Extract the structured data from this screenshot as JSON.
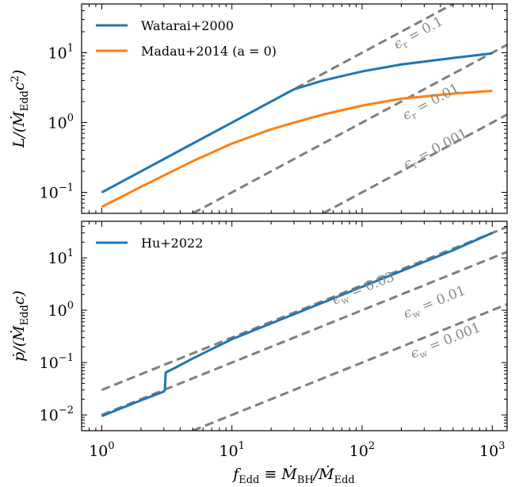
{
  "figure": {
    "xlabel": "f_Edd ≡ Ṁ_BH/Ṁ_Edd"
  },
  "chart_data": [
    {
      "type": "line",
      "panel": "top",
      "xscale": "log",
      "yscale": "log",
      "xlim": [
        0.7,
        1300
      ],
      "ylim": [
        0.05,
        50
      ],
      "ylabel": "L/(Ṁ_Edd c²)",
      "legend_position": "top-left",
      "x_ticks": [
        {
          "value": 1,
          "base": "10",
          "exp": "0"
        },
        {
          "value": 10,
          "base": "10",
          "exp": "1"
        },
        {
          "value": 100,
          "base": "10",
          "exp": "2"
        },
        {
          "value": 1000,
          "base": "10",
          "exp": "3"
        }
      ],
      "y_ticks": [
        {
          "value": 0.1,
          "base": "10",
          "exp": "−1"
        },
        {
          "value": 1,
          "base": "10",
          "exp": "0"
        },
        {
          "value": 10,
          "base": "10",
          "exp": "1"
        }
      ],
      "series": [
        {
          "name": "Watarai+2000",
          "color": "#1f77b4",
          "x": [
            1,
            2,
            5,
            10,
            20,
            25,
            30,
            50,
            100,
            200,
            500,
            1000
          ],
          "y": [
            0.1,
            0.2,
            0.5,
            1.0,
            2.0,
            2.5,
            3.0,
            4.0,
            5.4,
            6.8,
            8.4,
            9.8
          ]
        },
        {
          "name": "Madau+2014 (a = 0)",
          "color": "#ff7f0e",
          "x": [
            1,
            2,
            5,
            10,
            20,
            30,
            50,
            100,
            200,
            500,
            1000
          ],
          "y": [
            0.062,
            0.12,
            0.28,
            0.5,
            0.8,
            1.0,
            1.3,
            1.75,
            2.2,
            2.6,
            2.85
          ]
        }
      ],
      "reference_lines": [
        {
          "label": "ε_r = 0.1",
          "color": "#7f7f7f",
          "dash": "dashed",
          "x": [
            25,
            1300
          ],
          "y": [
            2.5,
            130
          ]
        },
        {
          "label": "ε_r = 0.01",
          "color": "#7f7f7f",
          "dash": "dashed",
          "x": [
            5,
            1300
          ],
          "y": [
            0.05,
            13
          ]
        },
        {
          "label": "ε_r = 0.001",
          "color": "#7f7f7f",
          "dash": "dashed",
          "x": [
            50,
            1300
          ],
          "y": [
            0.05,
            1.3
          ]
        }
      ],
      "annotations": [
        {
          "greek": "ϵ",
          "sub": "r",
          "rest": " = 0.1",
          "x": 280,
          "y": 17
        },
        {
          "greek": "ϵ",
          "sub": "r",
          "rest": " = 0.01",
          "x": 350,
          "y": 1.75
        },
        {
          "greek": "ϵ",
          "sub": "r",
          "rest": " = 0.001",
          "x": 380,
          "y": 0.37
        }
      ]
    },
    {
      "type": "line",
      "panel": "bottom",
      "xscale": "log",
      "yscale": "log",
      "xlim": [
        0.7,
        1300
      ],
      "ylim": [
        0.005,
        50
      ],
      "ylabel": "ṗ/(Ṁ_Edd c)",
      "legend_position": "top-left",
      "x_ticks": [
        {
          "value": 1,
          "base": "10",
          "exp": "0"
        },
        {
          "value": 10,
          "base": "10",
          "exp": "1"
        },
        {
          "value": 100,
          "base": "10",
          "exp": "2"
        },
        {
          "value": 1000,
          "base": "10",
          "exp": "3"
        }
      ],
      "y_ticks": [
        {
          "value": 0.01,
          "base": "10",
          "exp": "−2"
        },
        {
          "value": 0.1,
          "base": "10",
          "exp": "−1"
        },
        {
          "value": 1,
          "base": "10",
          "exp": "0"
        },
        {
          "value": 10,
          "base": "10",
          "exp": "1"
        }
      ],
      "series": [
        {
          "name": "Hu+2022",
          "color": "#1f77b4",
          "x": [
            1,
            2,
            3,
            3.05,
            3.1,
            3.5,
            5,
            10,
            20,
            50,
            100,
            200,
            500,
            1000
          ],
          "y": [
            0.0095,
            0.019,
            0.028,
            0.03,
            0.065,
            0.075,
            0.12,
            0.28,
            0.56,
            1.4,
            2.8,
            5.6,
            14,
            30
          ]
        }
      ],
      "reference_lines": [
        {
          "label": "ε_w = 0.03",
          "color": "#7f7f7f",
          "dash": "dashed",
          "x": [
            1,
            1300
          ],
          "y": [
            0.03,
            39
          ]
        },
        {
          "label": "ε_w = 0.01",
          "color": "#7f7f7f",
          "dash": "dashed",
          "x": [
            1,
            1300
          ],
          "y": [
            0.01,
            13
          ]
        },
        {
          "label": "ε_w = 0.001",
          "color": "#7f7f7f",
          "dash": "dashed",
          "x": [
            5,
            1300
          ],
          "y": [
            0.005,
            1.3
          ]
        }
      ],
      "annotations": [
        {
          "greek": "ϵ",
          "sub": "w",
          "rest": " = 0.03",
          "x": 105,
          "y": 2.2
        },
        {
          "greek": "ϵ",
          "sub": "w",
          "rest": " = 0.01",
          "x": 370,
          "y": 1.2
        },
        {
          "greek": "ϵ",
          "sub": "w",
          "rest": " = 0.001",
          "x": 450,
          "y": 0.22
        }
      ]
    }
  ]
}
